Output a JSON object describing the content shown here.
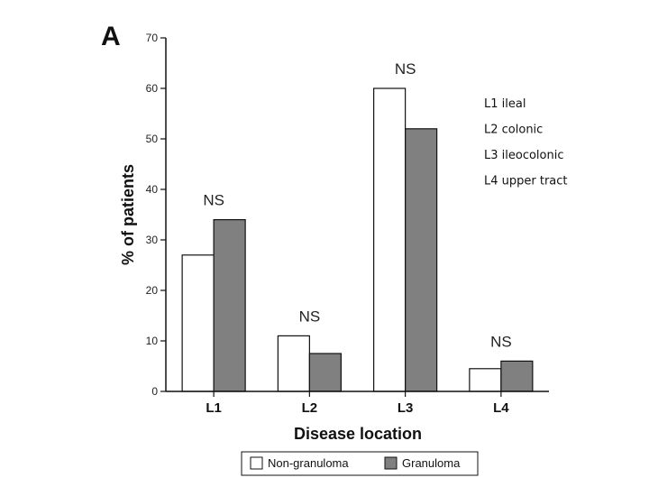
{
  "panel_label": "A",
  "chart_data": {
    "type": "bar",
    "title": "",
    "xlabel": "Disease location",
    "ylabel": "% of patients",
    "ylim": [
      0,
      70
    ],
    "yticks": [
      0,
      10,
      20,
      30,
      40,
      50,
      60,
      70
    ],
    "categories": [
      "L1",
      "L2",
      "L3",
      "L4"
    ],
    "series": [
      {
        "name": "Non-granuloma",
        "color": "#ffffff",
        "values": [
          27,
          11,
          60,
          4.5
        ]
      },
      {
        "name": "Granuloma",
        "color": "#808080",
        "values": [
          34,
          7.5,
          52,
          6
        ]
      }
    ],
    "annotations": [
      "NS",
      "NS",
      "NS",
      "NS"
    ],
    "notes": [
      "L1 ileal",
      "L2 colonic",
      "L3 ileocolonic",
      "L4 upper tract"
    ],
    "legend_position": "bottom"
  }
}
